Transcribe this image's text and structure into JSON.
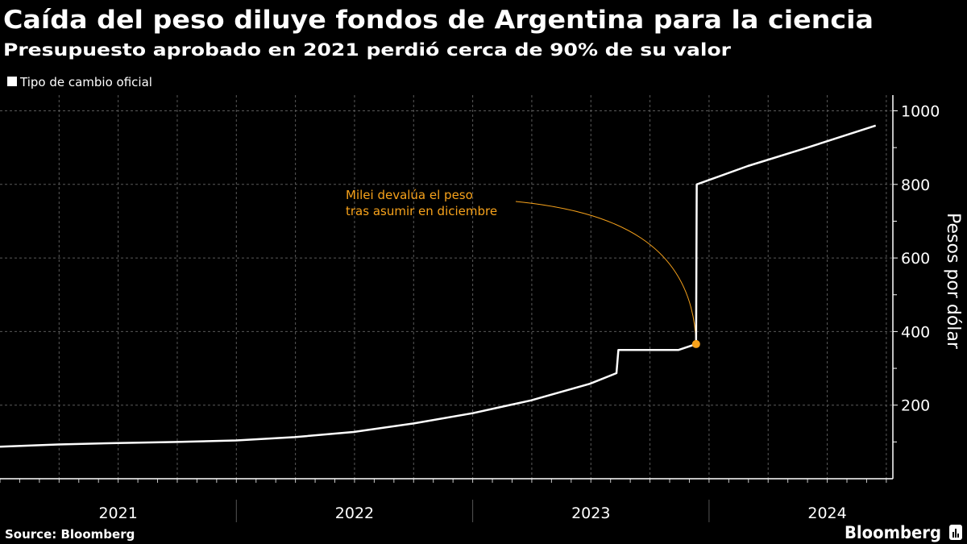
{
  "title": "Caída del peso diluye fondos de Argentina para la ciencia",
  "subtitle": "Presupuesto aprobado en 2021 perdió cerca de 90% de su valor",
  "source": "Source: Bloomberg",
  "brand": "Bloomberg",
  "chart_data": {
    "type": "line",
    "title": "Caída del peso diluye fondos de Argentina para la ciencia",
    "subtitle": "Presupuesto aprobado en 2021 perdió cerca de 90% de su valor",
    "xlabel": "",
    "ylabel": "Pesos por dólar",
    "ylim": [
      0,
      1050
    ],
    "xlim": [
      "2021-01-01",
      "2024-10-01"
    ],
    "y_ticks": [
      200,
      400,
      600,
      800,
      1000
    ],
    "x_tick_labels": [
      "2021",
      "2022",
      "2023",
      "2024"
    ],
    "grid": true,
    "legend_position": "top-left",
    "series": [
      {
        "name": "Tipo de cambio oficial",
        "color": "#ffffff",
        "x": [
          "2021-01-01",
          "2021-04-01",
          "2021-07-01",
          "2021-10-01",
          "2022-01-01",
          "2022-04-01",
          "2022-07-01",
          "2022-10-01",
          "2023-01-01",
          "2023-04-01",
          "2023-07-01",
          "2023-08-11",
          "2023-08-14",
          "2023-11-15",
          "2023-12-12",
          "2023-12-13",
          "2024-03-01",
          "2024-06-01",
          "2024-09-15"
        ],
        "y": [
          87,
          93,
          97,
          100,
          104,
          113,
          127,
          150,
          178,
          213,
          258,
          287,
          350,
          350,
          366,
          800,
          850,
          900,
          960
        ]
      }
    ],
    "annotations": [
      {
        "text_lines": [
          "Milei devalúa el peso",
          "tras asumir en diciembre"
        ],
        "x": "2023-12-12",
        "y": 366,
        "color": "#f7a21b"
      }
    ]
  }
}
